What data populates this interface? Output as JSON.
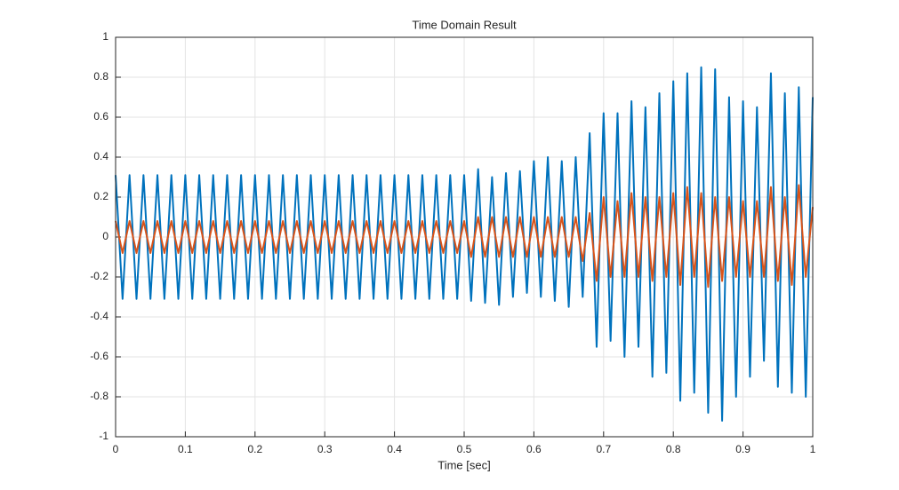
{
  "chart_data": {
    "type": "line",
    "title": "Time Domain Result",
    "xlabel": "Time [sec]",
    "x": [
      0,
      0.01,
      0.02,
      0.03,
      0.04,
      0.05,
      0.06,
      0.07,
      0.08,
      0.09,
      0.1,
      0.11,
      0.12,
      0.13,
      0.14,
      0.15,
      0.16,
      0.17,
      0.18,
      0.19,
      0.2,
      0.21,
      0.22,
      0.23,
      0.24,
      0.25,
      0.26,
      0.27,
      0.28,
      0.29,
      0.3,
      0.31,
      0.32,
      0.33,
      0.34,
      0.35,
      0.36,
      0.37,
      0.38,
      0.39,
      0.4,
      0.41,
      0.42,
      0.43,
      0.44,
      0.45,
      0.46,
      0.47,
      0.48,
      0.49,
      0.5,
      0.51,
      0.52,
      0.53,
      0.54,
      0.55,
      0.56,
      0.57,
      0.58,
      0.59,
      0.6,
      0.61,
      0.62,
      0.63,
      0.64,
      0.65,
      0.66,
      0.67,
      0.68,
      0.69,
      0.7,
      0.71,
      0.72,
      0.73,
      0.74,
      0.75,
      0.76,
      0.77,
      0.78,
      0.79,
      0.8,
      0.81,
      0.82,
      0.83,
      0.84,
      0.85,
      0.86,
      0.87,
      0.88,
      0.89,
      0.9,
      0.91,
      0.92,
      0.93,
      0.94,
      0.95,
      0.96,
      0.97,
      0.98,
      0.99,
      1
    ],
    "series": [
      {
        "color": "#0072bd",
        "values": [
          0.31,
          -0.31,
          0.31,
          -0.31,
          0.31,
          -0.31,
          0.31,
          -0.31,
          0.31,
          -0.31,
          0.31,
          -0.31,
          0.31,
          -0.31,
          0.31,
          -0.31,
          0.31,
          -0.31,
          0.31,
          -0.31,
          0.31,
          -0.31,
          0.31,
          -0.31,
          0.31,
          -0.31,
          0.31,
          -0.31,
          0.31,
          -0.31,
          0.31,
          -0.31,
          0.31,
          -0.31,
          0.31,
          -0.31,
          0.31,
          -0.31,
          0.31,
          -0.31,
          0.31,
          -0.31,
          0.31,
          -0.31,
          0.31,
          -0.31,
          0.31,
          -0.31,
          0.31,
          -0.31,
          0.31,
          -0.32,
          0.34,
          -0.33,
          0.3,
          -0.34,
          0.32,
          -0.3,
          0.33,
          -0.28,
          0.38,
          -0.3,
          0.4,
          -0.32,
          0.38,
          -0.35,
          0.4,
          -0.3,
          0.52,
          -0.55,
          0.62,
          -0.52,
          0.62,
          -0.6,
          0.68,
          -0.55,
          0.65,
          -0.7,
          0.72,
          -0.68,
          0.78,
          -0.82,
          0.82,
          -0.78,
          0.85,
          -0.88,
          0.84,
          -0.92,
          0.7,
          -0.8,
          0.68,
          -0.7,
          0.65,
          -0.62,
          0.82,
          -0.75,
          0.72,
          -0.78,
          0.75,
          -0.8,
          0.7
        ]
      },
      {
        "color": "#d95319",
        "values": [
          0.08,
          -0.08,
          0.08,
          -0.08,
          0.08,
          -0.08,
          0.08,
          -0.08,
          0.08,
          -0.08,
          0.08,
          -0.08,
          0.08,
          -0.08,
          0.08,
          -0.08,
          0.08,
          -0.08,
          0.08,
          -0.08,
          0.08,
          -0.08,
          0.08,
          -0.08,
          0.08,
          -0.08,
          0.08,
          -0.08,
          0.08,
          -0.08,
          0.08,
          -0.08,
          0.08,
          -0.08,
          0.08,
          -0.08,
          0.08,
          -0.08,
          0.08,
          -0.08,
          0.08,
          -0.08,
          0.08,
          -0.08,
          0.08,
          -0.08,
          0.08,
          -0.08,
          0.08,
          -0.08,
          0.08,
          -0.1,
          0.1,
          -0.1,
          0.1,
          -0.1,
          0.1,
          -0.1,
          0.1,
          -0.1,
          0.1,
          -0.1,
          0.1,
          -0.1,
          0.1,
          -0.1,
          0.1,
          -0.12,
          0.12,
          -0.22,
          0.2,
          -0.2,
          0.18,
          -0.2,
          0.22,
          -0.2,
          0.2,
          -0.22,
          0.2,
          -0.2,
          0.22,
          -0.24,
          0.25,
          -0.2,
          0.22,
          -0.25,
          0.2,
          -0.22,
          0.2,
          -0.2,
          0.18,
          -0.2,
          0.18,
          -0.2,
          0.25,
          -0.22,
          0.2,
          -0.24,
          0.26,
          -0.2,
          0.15
        ]
      }
    ],
    "xlim": [
      0,
      1
    ],
    "xticks": [
      0,
      0.1,
      0.2,
      0.3,
      0.4,
      0.5,
      0.6,
      0.7,
      0.8,
      0.9,
      1
    ],
    "ylim": [
      -1,
      1
    ],
    "yticks": [
      -1,
      -0.8,
      -0.6,
      -0.4,
      -0.2,
      0,
      0.2,
      0.4,
      0.6,
      0.8,
      1
    ],
    "grid": true
  }
}
